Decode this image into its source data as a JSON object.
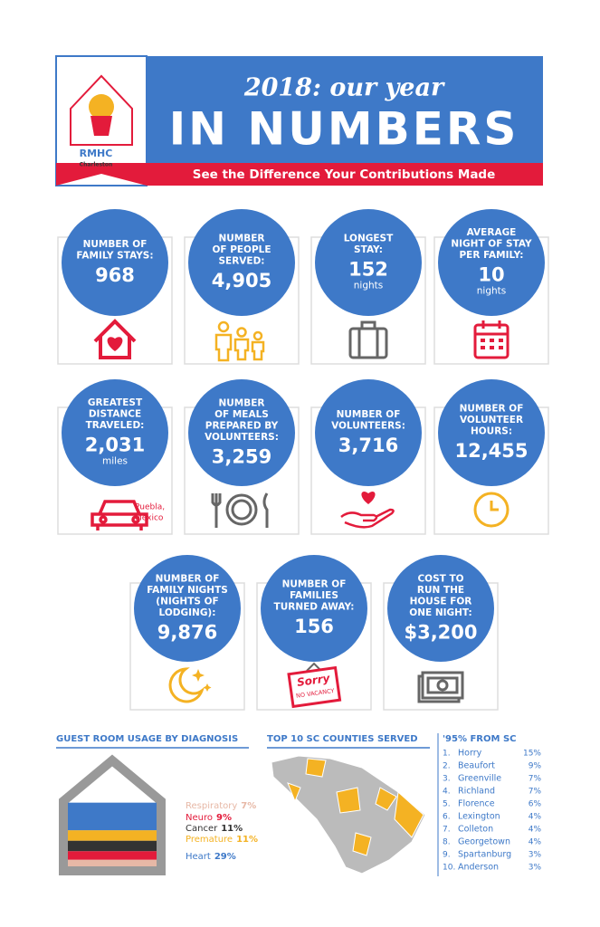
{
  "header": {
    "year_title": "2018: our year",
    "title": "IN NUMBERS",
    "subtitle": "See the Difference Your Contributions Made",
    "logo": "RMHC",
    "logo_sub": "Charleston"
  },
  "stats": [
    {
      "label": [
        "NUMBER OF",
        "FAMILY STAYS:"
      ],
      "value": "968"
    },
    {
      "label": [
        "NUMBER",
        "OF PEOPLE",
        "SERVED:"
      ],
      "value": "4,905"
    },
    {
      "label": [
        "LONGEST",
        "STAY:"
      ],
      "value": "152",
      "unit": "nights"
    },
    {
      "label": [
        "AVERAGE",
        "NIGHT OF STAY",
        "PER FAMILY:"
      ],
      "value": "10",
      "unit": "nights"
    },
    {
      "label": [
        "GREATEST",
        "DISTANCE",
        "TRAVELED:"
      ],
      "value": "2,031",
      "unit": "miles",
      "note": [
        "Puebla,",
        "Mexico"
      ]
    },
    {
      "label": [
        "NUMBER",
        "OF MEALS",
        "PREPARED BY",
        "VOLUNTEERS:"
      ],
      "value": "3,259"
    },
    {
      "label": [
        "NUMBER OF",
        "VOLUNTEERS:"
      ],
      "value": "3,716"
    },
    {
      "label": [
        "NUMBER OF",
        "VOLUNTEER",
        "HOURS:"
      ],
      "value": "12,455"
    },
    {
      "label": [
        "NUMBER OF",
        "FAMILY NIGHTS",
        "(NIGHTS OF",
        "LODGING):"
      ],
      "value": "9,876"
    },
    {
      "label": [
        "NUMBER OF",
        "FAMILIES",
        "TURNED AWAY:"
      ],
      "value": "156",
      "sign": [
        "Sorry",
        "NO VACANCY"
      ]
    },
    {
      "label": [
        "COST TO",
        "RUN THE",
        "HOUSE FOR",
        "ONE NIGHT:"
      ],
      "value": "$3,200"
    }
  ],
  "diagnosis": {
    "title": "GUEST ROOM USAGE BY DIAGNOSIS",
    "items": [
      {
        "name": "Respiratory",
        "value": 7,
        "label": "7%",
        "color": "#e7b8a6"
      },
      {
        "name": "Neuro",
        "value": 9,
        "label": "9%",
        "color": "#e31b3b"
      },
      {
        "name": "Cancer",
        "value": 11,
        "label": "11%",
        "color": "#333333"
      },
      {
        "name": "Premature",
        "value": 11,
        "label": "11%",
        "color": "#f4b223"
      },
      {
        "name": "Heart",
        "value": 29,
        "label": "29%",
        "color": "#3e79c8"
      }
    ]
  },
  "counties": {
    "title": "TOP 10 SC COUNTIES SERVED",
    "heading": "'95% FROM SC",
    "items": [
      {
        "rank": "1.",
        "name": "Horry",
        "pct": "15%"
      },
      {
        "rank": "2.",
        "name": "Beaufort",
        "pct": "9%"
      },
      {
        "rank": "3.",
        "name": "Greenville",
        "pct": "7%"
      },
      {
        "rank": "4.",
        "name": "Richland",
        "pct": "7%"
      },
      {
        "rank": "5.",
        "name": "Florence",
        "pct": "6%"
      },
      {
        "rank": "6.",
        "name": "Lexington",
        "pct": "4%"
      },
      {
        "rank": "7.",
        "name": "Colleton",
        "pct": "4%"
      },
      {
        "rank": "8.",
        "name": "Georgetown",
        "pct": "4%"
      },
      {
        "rank": "9.",
        "name": "Spartanburg",
        "pct": "3%"
      },
      {
        "rank": "10.",
        "name": "Anderson",
        "pct": "3%"
      }
    ]
  }
}
